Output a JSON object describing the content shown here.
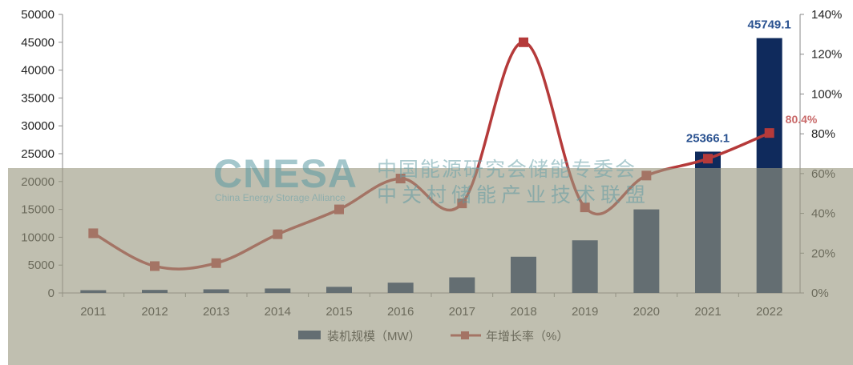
{
  "watermark": {
    "logo": "CNESA",
    "subtitle": "China Energy Storage Alliance",
    "line1": "中国能源研究会储能专委会",
    "line2": "中关村储能产业技术联盟"
  },
  "chart_data": {
    "type": "bar",
    "categories": [
      "2011",
      "2012",
      "2013",
      "2014",
      "2015",
      "2016",
      "2017",
      "2018",
      "2019",
      "2020",
      "2021",
      "2022"
    ],
    "series": [
      {
        "name": "装机规模（MW）",
        "type": "bar",
        "axis": "left",
        "color": "#0f2a5c",
        "values": [
          500,
          550,
          650,
          800,
          1100,
          1850,
          2800,
          6500,
          9450,
          15000,
          25366.1,
          45749.1
        ]
      },
      {
        "name": "年增长率（%）",
        "type": "line",
        "axis": "right",
        "color": "#b53a3a",
        "values": [
          30,
          13.5,
          15,
          29.5,
          42,
          57.5,
          45,
          126,
          43,
          59,
          67.5,
          80.4
        ]
      }
    ],
    "data_labels": [
      {
        "category": "2021",
        "series": 0,
        "text": "25366.1"
      },
      {
        "category": "2022",
        "series": 0,
        "text": "45749.1"
      },
      {
        "category": "2022",
        "series": 1,
        "text": "80.4%"
      }
    ],
    "y_left": {
      "ylim": [
        0,
        50000
      ],
      "ticks": [
        "0",
        "5000",
        "10000",
        "15000",
        "20000",
        "25000",
        "30000",
        "35000",
        "40000",
        "45000",
        "50000"
      ]
    },
    "y_right": {
      "ylim": [
        0,
        140
      ],
      "ticks": [
        "0%",
        "20%",
        "40%",
        "60%",
        "80%",
        "100%",
        "120%",
        "140%"
      ]
    },
    "legend_position": "bottom",
    "grid": false
  }
}
